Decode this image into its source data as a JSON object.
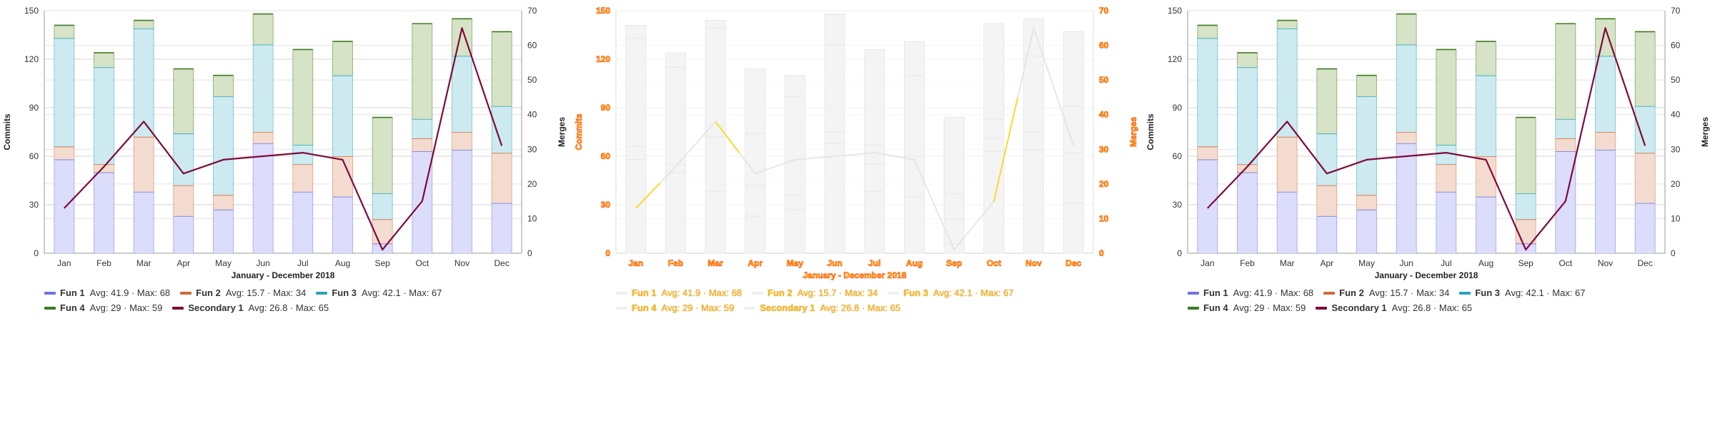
{
  "chart_data": {
    "type": "bar",
    "stacked": true,
    "combo": "bar+line",
    "xlabel": "January - December 2018",
    "ylabel": "Commits",
    "y2label": "Merges",
    "categories": [
      "Jan",
      "Feb",
      "Mar",
      "Apr",
      "May",
      "Jun",
      "Jul",
      "Aug",
      "Sep",
      "Oct",
      "Nov",
      "Dec"
    ],
    "ylim": [
      0,
      150
    ],
    "y2lim": [
      0,
      70
    ],
    "yticks": [
      "0",
      "30",
      "60",
      "90",
      "120",
      "150"
    ],
    "y2ticks": [
      "0",
      "10",
      "20",
      "30",
      "40",
      "50",
      "60",
      "70"
    ],
    "grid": true,
    "legend_position": "bottom-left",
    "series": [
      {
        "name": "Fun 1",
        "stat": "Avg: 41.9 · Max: 68",
        "axis": "left",
        "kind": "bar",
        "color": "#6d74e0",
        "fill": "#dcdcfb",
        "values": [
          58,
          50,
          38,
          23,
          27,
          68,
          38,
          35,
          6,
          63,
          64,
          31
        ]
      },
      {
        "name": "Fun 2",
        "stat": "Avg: 15.7 · Max: 34",
        "axis": "left",
        "kind": "bar",
        "color": "#d2693a",
        "fill": "#f3dccf",
        "values": [
          8,
          5,
          34,
          19,
          9,
          7,
          17,
          25,
          15,
          8,
          11,
          31
        ]
      },
      {
        "name": "Fun 3",
        "stat": "Avg: 42.1 · Max: 67",
        "axis": "left",
        "kind": "bar",
        "color": "#25a4b8",
        "fill": "#cdeaf0",
        "values": [
          67,
          60,
          67,
          32,
          61,
          54,
          12,
          50,
          16,
          12,
          47,
          29
        ]
      },
      {
        "name": "Fun 4",
        "stat": "Avg: 29 · Max: 59",
        "axis": "left",
        "kind": "bar",
        "color": "#3d7a1e",
        "fill": "#d6e3c6",
        "values": [
          8,
          9,
          5,
          40,
          13,
          19,
          59,
          21,
          47,
          59,
          23,
          46
        ]
      },
      {
        "name": "Secondary 1",
        "stat": "Avg: 26.8 · Max: 65",
        "axis": "right",
        "kind": "line",
        "color": "#7e0a3a",
        "values": [
          13,
          25,
          38,
          23,
          27,
          28,
          29,
          27,
          1,
          15,
          65,
          31
        ]
      }
    ]
  }
}
